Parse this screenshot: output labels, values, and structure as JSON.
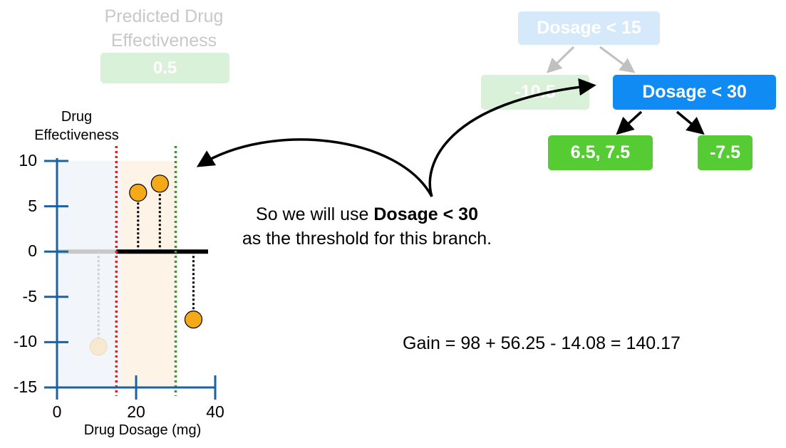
{
  "faded_title": {
    "line1": "Predicted Drug",
    "line2": "Effectiveness",
    "value": "0.5"
  },
  "tree": {
    "root": {
      "label": "Dosage < 15"
    },
    "left_leaf": {
      "label": "-10.5"
    },
    "split": {
      "label": "Dosage < 30"
    },
    "leaf_a": {
      "label": "6.5, 7.5"
    },
    "leaf_b": {
      "label": "-7.5"
    }
  },
  "caption": {
    "prefix": "So we will use ",
    "bold": "Dosage < 30",
    "suffix": "as the threshold for this branch."
  },
  "gain_text": "Gain = 98 + 56.25 - 14.08 = 140.17",
  "colors": {
    "accent_blue": "#0f8bf3",
    "faded_blue": "#d5e9fb",
    "leaf_green": "#55cc33",
    "faded_green": "#d9f0d9",
    "axis": "#1a63a0",
    "point": "#f4a919",
    "threshold_red": "#e0221e",
    "threshold_green": "#2f9e2f"
  },
  "chart_data": {
    "type": "scatter",
    "ylabel_line1": "Drug",
    "ylabel_line2": "Effectiveness",
    "xlabel": "Drug Dosage (mg)",
    "xlim": [
      0,
      40
    ],
    "ylim": [
      -15,
      10
    ],
    "xticks": [
      "0",
      "20",
      "40"
    ],
    "yticks": [
      "10",
      "5",
      "0",
      "-5",
      "-10",
      "-15"
    ],
    "prediction_line": 0,
    "thresholds": [
      {
        "x": 15,
        "style": "red-dotted"
      },
      {
        "x": 30,
        "style": "green-dotted"
      }
    ],
    "points": [
      {
        "x": 10.5,
        "y": -10.5,
        "faded": true
      },
      {
        "x": 20.5,
        "y": 6.5,
        "faded": false
      },
      {
        "x": 26,
        "y": 7.5,
        "faded": false
      },
      {
        "x": 34.5,
        "y": -7.5,
        "faded": false
      }
    ]
  }
}
